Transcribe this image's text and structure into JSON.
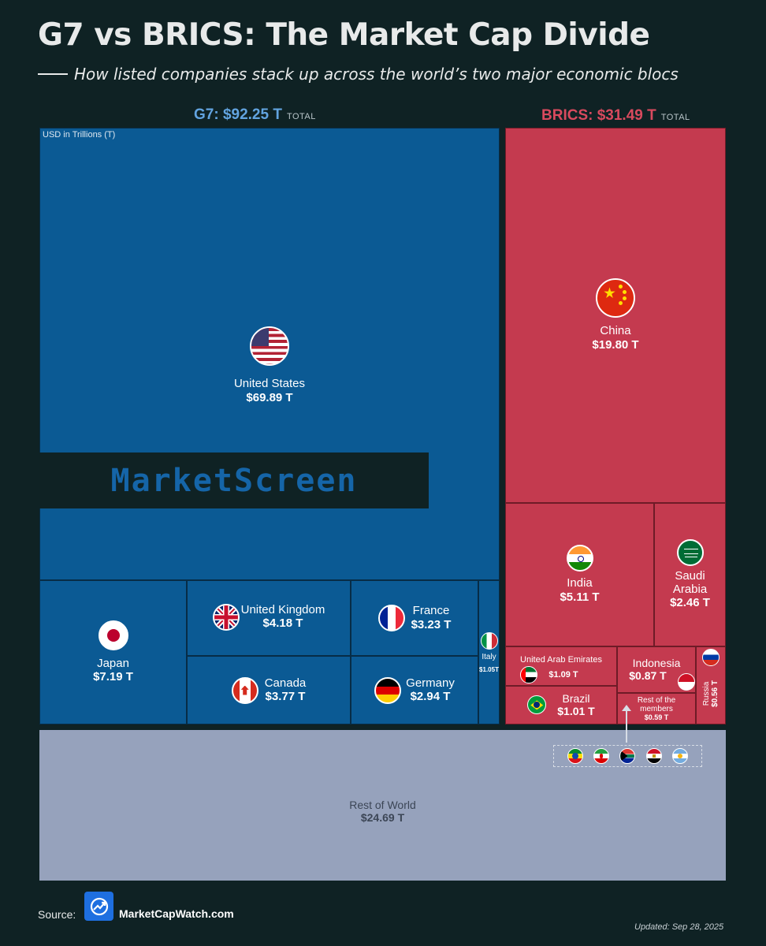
{
  "title": "G7 vs BRICS: The Market Cap Divide",
  "subtitle": "How listed companies stack up across the world’s two major economic blocs",
  "g7_header": {
    "label": "G7: $92.25 T",
    "total_word": "TOTAL"
  },
  "brics_header": {
    "label": "BRICS: $31.49 T",
    "total_word": "TOTAL"
  },
  "unit_note": "USD in Trillions (T)",
  "watermark": "MarketScreen",
  "source_label": "Source:",
  "source_site": "MarketCapWatch.com",
  "updated": "Updated: Sep 28, 2025",
  "colors": {
    "g7": "#0b5a94",
    "brics": "#c43a4f",
    "rest_of_world": "#96a2bc",
    "background": "#0f2224"
  },
  "small_flag_icons": [
    "ethiopia-flag-icon",
    "iran-flag-icon",
    "south-africa-flag-icon",
    "egypt-flag-icon",
    "argentina-flag-icon"
  ],
  "chart_data": {
    "type": "treemap",
    "unit": "USD in Trillions (T)",
    "groups": [
      {
        "name": "G7",
        "total": 92.25,
        "items": [
          {
            "name": "United States",
            "label": "$69.89 T",
            "value": 69.89
          },
          {
            "name": "Japan",
            "label": "$7.19 T",
            "value": 7.19
          },
          {
            "name": "United Kingdom",
            "label": "$4.18 T",
            "value": 4.18
          },
          {
            "name": "Canada",
            "label": "$3.77 T",
            "value": 3.77
          },
          {
            "name": "France",
            "label": "$3.23 T",
            "value": 3.23
          },
          {
            "name": "Germany",
            "label": "$2.94 T",
            "value": 2.94
          },
          {
            "name": "Italy",
            "label": "$1.05T",
            "value": 1.05
          }
        ]
      },
      {
        "name": "BRICS",
        "total": 31.49,
        "items": [
          {
            "name": "China",
            "label": "$19.80 T",
            "value": 19.8
          },
          {
            "name": "India",
            "label": "$5.11 T",
            "value": 5.11
          },
          {
            "name": "Saudi Arabia",
            "label": "$2.46 T",
            "value": 2.46
          },
          {
            "name": "United Arab Emirates",
            "label": "$1.09 T",
            "value": 1.09
          },
          {
            "name": "Indonesia",
            "label": "$0.87 T",
            "value": 0.87
          },
          {
            "name": "Russia",
            "label": "$0.56 T",
            "value": 0.56
          },
          {
            "name": "Brazil",
            "label": "$1.01 T",
            "value": 1.01
          },
          {
            "name": "Rest of the members",
            "label": "$0.59 T",
            "value": 0.59
          }
        ]
      },
      {
        "name": "Rest of World",
        "items": [
          {
            "name": "Rest of World",
            "label": "$24.69 T",
            "value": 24.69
          }
        ]
      }
    ]
  }
}
